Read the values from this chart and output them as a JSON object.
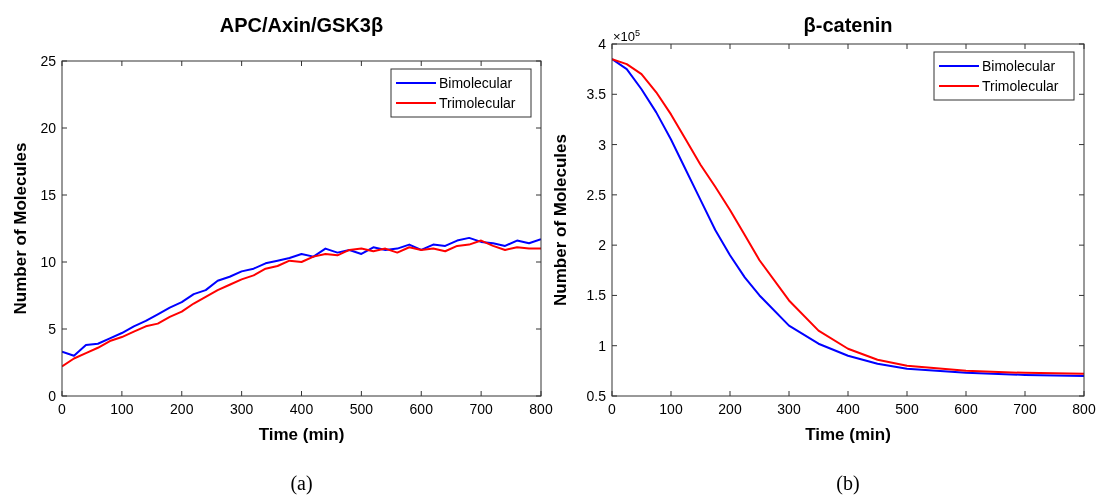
{
  "chart_data": [
    {
      "type": "line",
      "title": "APC/Axin/GSK3β",
      "xlabel": "Time (min)",
      "ylabel": "Number of Molecules",
      "annotations": [
        "(a)"
      ],
      "x": [
        0,
        20,
        40,
        60,
        80,
        100,
        120,
        140,
        160,
        180,
        200,
        220,
        240,
        260,
        280,
        300,
        320,
        340,
        360,
        380,
        400,
        420,
        440,
        460,
        480,
        500,
        520,
        540,
        560,
        580,
        600,
        620,
        640,
        660,
        680,
        700,
        720,
        740,
        760,
        780,
        800
      ],
      "series": [
        {
          "name": "Bimolecular",
          "color": "#0000ff",
          "values": [
            3.3,
            3.0,
            3.8,
            3.9,
            4.3,
            4.7,
            5.2,
            5.6,
            6.1,
            6.6,
            7.0,
            7.6,
            7.9,
            8.6,
            8.9,
            9.3,
            9.5,
            9.9,
            10.1,
            10.3,
            10.6,
            10.4,
            11.0,
            10.7,
            10.9,
            10.6,
            11.1,
            10.9,
            11.0,
            11.3,
            10.9,
            11.3,
            11.2,
            11.6,
            11.8,
            11.5,
            11.4,
            11.2,
            11.6,
            11.4,
            11.7
          ]
        },
        {
          "name": "Trimolecular",
          "color": "#ff0000",
          "values": [
            2.2,
            2.8,
            3.2,
            3.6,
            4.1,
            4.4,
            4.8,
            5.2,
            5.4,
            5.9,
            6.3,
            6.9,
            7.4,
            7.9,
            8.3,
            8.7,
            9.0,
            9.5,
            9.7,
            10.1,
            10.0,
            10.4,
            10.6,
            10.5,
            10.9,
            11.0,
            10.8,
            11.0,
            10.7,
            11.1,
            10.9,
            11.0,
            10.8,
            11.2,
            11.3,
            11.6,
            11.2,
            10.9,
            11.1,
            11.0,
            11.0
          ]
        }
      ],
      "xlim": [
        0,
        800
      ],
      "xticks": [
        0,
        100,
        200,
        300,
        400,
        500,
        600,
        700,
        800
      ],
      "ylim": [
        0,
        25
      ],
      "yticks": [
        0,
        5,
        10,
        15,
        20,
        25
      ],
      "grid": false,
      "legend": "top right",
      "line_style": "solid"
    },
    {
      "type": "line",
      "title": "β-catenin",
      "xlabel": "Time (min)",
      "ylabel": "Number of Molecules",
      "annotations": [
        "×10$^{5}$",
        "(b)"
      ],
      "x": [
        0,
        25,
        50,
        75,
        100,
        125,
        150,
        175,
        200,
        225,
        250,
        300,
        350,
        400,
        450,
        500,
        600,
        700,
        800
      ],
      "series": [
        {
          "name": "Bimolecular",
          "color": "#0000ff",
          "values": [
            3.85,
            3.75,
            3.55,
            3.32,
            3.05,
            2.75,
            2.45,
            2.15,
            1.9,
            1.68,
            1.5,
            1.2,
            1.02,
            0.9,
            0.82,
            0.77,
            0.73,
            0.71,
            0.7
          ]
        },
        {
          "name": "Trimolecular",
          "color": "#ff0000",
          "values": [
            3.85,
            3.8,
            3.7,
            3.52,
            3.3,
            3.05,
            2.8,
            2.58,
            2.35,
            2.1,
            1.85,
            1.45,
            1.15,
            0.97,
            0.86,
            0.8,
            0.75,
            0.73,
            0.72
          ]
        }
      ],
      "xlim": [
        0,
        800
      ],
      "xticks": [
        0,
        100,
        200,
        300,
        400,
        500,
        600,
        700,
        800
      ],
      "ylim": [
        0.5,
        4
      ],
      "yticks": [
        0.5,
        1,
        1.5,
        2,
        2.5,
        3,
        3.5,
        4
      ],
      "grid": false,
      "legend": "top right",
      "line_style": "solid"
    }
  ]
}
